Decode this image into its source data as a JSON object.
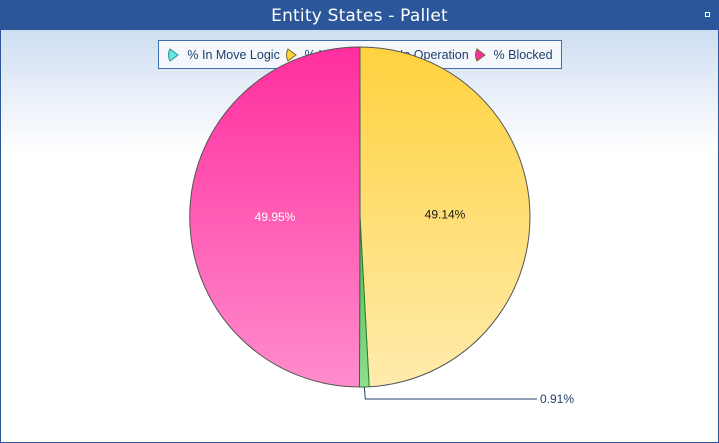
{
  "window": {
    "title": "Entity States - Pallet"
  },
  "colors": {
    "titlebar": "#2b579a",
    "legend_border": "#3d6fae",
    "legend_text": "#1e3f6c"
  },
  "chart_data": {
    "type": "pie",
    "title": "",
    "legend_position": "top-center",
    "slices": [
      {
        "name": "% In Move Logic",
        "value": 0,
        "label": "",
        "colors": [
          "#66e8e8",
          "#b7f6f6"
        ],
        "stroke": "#2f8f8f"
      },
      {
        "name": "% Waiting",
        "value": 49.14,
        "label": "49.14%",
        "colors": [
          "#ffd23e",
          "#ffebad"
        ],
        "stroke": "#555555"
      },
      {
        "name": "% In Operation",
        "value": 0.91,
        "label": "0.91%",
        "colors": [
          "#46b946",
          "#8ee08e"
        ],
        "stroke": "#2e7d2e"
      },
      {
        "name": "% Blocked",
        "value": 49.95,
        "label": "49.95%",
        "colors": [
          "#ff2e9e",
          "#ff8ccc"
        ],
        "stroke": "#555555"
      }
    ]
  }
}
